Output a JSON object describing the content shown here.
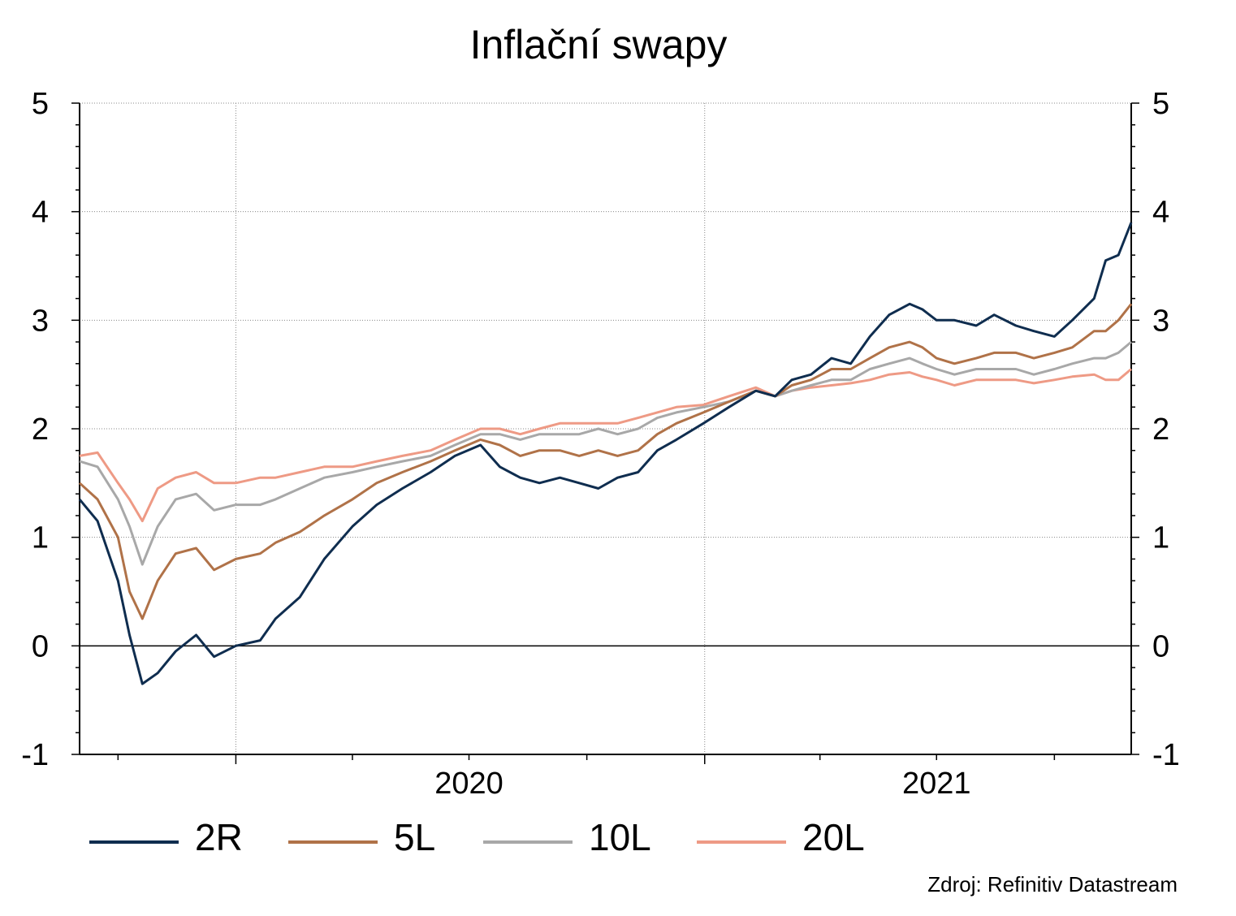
{
  "chart_data": {
    "type": "line",
    "title": "Inflační swapy",
    "source": "Zdroj: Refinitiv Datastream",
    "x_range": [
      "2019-09-01",
      "2021-11-30"
    ],
    "x_year_labels": [
      {
        "label": "2020",
        "date": "2020-07-01"
      },
      {
        "label": "2021",
        "date": "2021-07-01"
      }
    ],
    "ylim": [
      -1,
      5
    ],
    "yticks": [
      -1,
      0,
      1,
      2,
      3,
      4,
      5
    ],
    "ytick_labels": [
      "-1",
      "0",
      "1",
      "2",
      "3",
      "4",
      "5"
    ],
    "grid": true,
    "legend_position": "bottom",
    "series": [
      {
        "name": "2R",
        "color": "#0f2d4f",
        "points": [
          [
            "2019-09-01",
            1.35
          ],
          [
            "2019-09-15",
            1.15
          ],
          [
            "2019-10-01",
            0.6
          ],
          [
            "2019-10-10",
            0.1
          ],
          [
            "2019-10-20",
            -0.35
          ],
          [
            "2019-11-01",
            -0.25
          ],
          [
            "2019-11-15",
            -0.05
          ],
          [
            "2019-12-01",
            0.1
          ],
          [
            "2019-12-15",
            -0.1
          ],
          [
            "2020-01-01",
            0.0
          ],
          [
            "2020-01-20",
            0.05
          ],
          [
            "2020-02-01",
            0.25
          ],
          [
            "2020-02-20",
            0.45
          ],
          [
            "2020-03-10",
            0.8
          ],
          [
            "2020-04-01",
            1.1
          ],
          [
            "2020-04-20",
            1.3
          ],
          [
            "2020-05-10",
            1.45
          ],
          [
            "2020-06-01",
            1.6
          ],
          [
            "2020-06-20",
            1.75
          ],
          [
            "2020-07-10",
            1.85
          ],
          [
            "2020-07-25",
            1.65
          ],
          [
            "2020-08-10",
            1.55
          ],
          [
            "2020-08-25",
            1.5
          ],
          [
            "2020-09-10",
            1.55
          ],
          [
            "2020-09-25",
            1.5
          ],
          [
            "2020-10-10",
            1.45
          ],
          [
            "2020-10-25",
            1.55
          ],
          [
            "2020-11-10",
            1.6
          ],
          [
            "2020-11-25",
            1.8
          ],
          [
            "2020-12-10",
            1.9
          ],
          [
            "2020-12-31",
            2.05
          ],
          [
            "2021-01-20",
            2.2
          ],
          [
            "2021-02-10",
            2.35
          ],
          [
            "2021-02-25",
            2.3
          ],
          [
            "2021-03-10",
            2.45
          ],
          [
            "2021-03-25",
            2.5
          ],
          [
            "2021-04-10",
            2.65
          ],
          [
            "2021-04-25",
            2.6
          ],
          [
            "2021-05-10",
            2.85
          ],
          [
            "2021-05-25",
            3.05
          ],
          [
            "2021-06-10",
            3.15
          ],
          [
            "2021-06-20",
            3.1
          ],
          [
            "2021-07-01",
            3.0
          ],
          [
            "2021-07-15",
            3.0
          ],
          [
            "2021-08-01",
            2.95
          ],
          [
            "2021-08-15",
            3.05
          ],
          [
            "2021-09-01",
            2.95
          ],
          [
            "2021-09-15",
            2.9
          ],
          [
            "2021-10-01",
            2.85
          ],
          [
            "2021-10-15",
            3.0
          ],
          [
            "2021-11-01",
            3.2
          ],
          [
            "2021-11-10",
            3.55
          ],
          [
            "2021-11-20",
            3.6
          ],
          [
            "2021-11-30",
            3.9
          ]
        ]
      },
      {
        "name": "5L",
        "color": "#b07248",
        "points": [
          [
            "2019-09-01",
            1.5
          ],
          [
            "2019-09-15",
            1.35
          ],
          [
            "2019-10-01",
            1.0
          ],
          [
            "2019-10-10",
            0.5
          ],
          [
            "2019-10-20",
            0.25
          ],
          [
            "2019-11-01",
            0.6
          ],
          [
            "2019-11-15",
            0.85
          ],
          [
            "2019-12-01",
            0.9
          ],
          [
            "2019-12-15",
            0.7
          ],
          [
            "2020-01-01",
            0.8
          ],
          [
            "2020-01-20",
            0.85
          ],
          [
            "2020-02-01",
            0.95
          ],
          [
            "2020-02-20",
            1.05
          ],
          [
            "2020-03-10",
            1.2
          ],
          [
            "2020-04-01",
            1.35
          ],
          [
            "2020-04-20",
            1.5
          ],
          [
            "2020-05-10",
            1.6
          ],
          [
            "2020-06-01",
            1.7
          ],
          [
            "2020-06-20",
            1.8
          ],
          [
            "2020-07-10",
            1.9
          ],
          [
            "2020-07-25",
            1.85
          ],
          [
            "2020-08-10",
            1.75
          ],
          [
            "2020-08-25",
            1.8
          ],
          [
            "2020-09-10",
            1.8
          ],
          [
            "2020-09-25",
            1.75
          ],
          [
            "2020-10-10",
            1.8
          ],
          [
            "2020-10-25",
            1.75
          ],
          [
            "2020-11-10",
            1.8
          ],
          [
            "2020-11-25",
            1.95
          ],
          [
            "2020-12-10",
            2.05
          ],
          [
            "2020-12-31",
            2.15
          ],
          [
            "2021-01-20",
            2.25
          ],
          [
            "2021-02-10",
            2.35
          ],
          [
            "2021-02-25",
            2.3
          ],
          [
            "2021-03-10",
            2.4
          ],
          [
            "2021-03-25",
            2.45
          ],
          [
            "2021-04-10",
            2.55
          ],
          [
            "2021-04-25",
            2.55
          ],
          [
            "2021-05-10",
            2.65
          ],
          [
            "2021-05-25",
            2.75
          ],
          [
            "2021-06-10",
            2.8
          ],
          [
            "2021-06-20",
            2.75
          ],
          [
            "2021-07-01",
            2.65
          ],
          [
            "2021-07-15",
            2.6
          ],
          [
            "2021-08-01",
            2.65
          ],
          [
            "2021-08-15",
            2.7
          ],
          [
            "2021-09-01",
            2.7
          ],
          [
            "2021-09-15",
            2.65
          ],
          [
            "2021-10-01",
            2.7
          ],
          [
            "2021-10-15",
            2.75
          ],
          [
            "2021-11-01",
            2.9
          ],
          [
            "2021-11-10",
            2.9
          ],
          [
            "2021-11-20",
            3.0
          ],
          [
            "2021-11-30",
            3.15
          ]
        ]
      },
      {
        "name": "10L",
        "color": "#a8a8a8",
        "points": [
          [
            "2019-09-01",
            1.7
          ],
          [
            "2019-09-15",
            1.65
          ],
          [
            "2019-10-01",
            1.35
          ],
          [
            "2019-10-10",
            1.1
          ],
          [
            "2019-10-20",
            0.75
          ],
          [
            "2019-11-01",
            1.1
          ],
          [
            "2019-11-15",
            1.35
          ],
          [
            "2019-12-01",
            1.4
          ],
          [
            "2019-12-15",
            1.25
          ],
          [
            "2020-01-01",
            1.3
          ],
          [
            "2020-01-20",
            1.3
          ],
          [
            "2020-02-01",
            1.35
          ],
          [
            "2020-02-20",
            1.45
          ],
          [
            "2020-03-10",
            1.55
          ],
          [
            "2020-04-01",
            1.6
          ],
          [
            "2020-04-20",
            1.65
          ],
          [
            "2020-05-10",
            1.7
          ],
          [
            "2020-06-01",
            1.75
          ],
          [
            "2020-06-20",
            1.85
          ],
          [
            "2020-07-10",
            1.95
          ],
          [
            "2020-07-25",
            1.95
          ],
          [
            "2020-08-10",
            1.9
          ],
          [
            "2020-08-25",
            1.95
          ],
          [
            "2020-09-10",
            1.95
          ],
          [
            "2020-09-25",
            1.95
          ],
          [
            "2020-10-10",
            2.0
          ],
          [
            "2020-10-25",
            1.95
          ],
          [
            "2020-11-10",
            2.0
          ],
          [
            "2020-11-25",
            2.1
          ],
          [
            "2020-12-10",
            2.15
          ],
          [
            "2020-12-31",
            2.2
          ],
          [
            "2021-01-20",
            2.25
          ],
          [
            "2021-02-10",
            2.35
          ],
          [
            "2021-02-25",
            2.3
          ],
          [
            "2021-03-10",
            2.35
          ],
          [
            "2021-03-25",
            2.4
          ],
          [
            "2021-04-10",
            2.45
          ],
          [
            "2021-04-25",
            2.45
          ],
          [
            "2021-05-10",
            2.55
          ],
          [
            "2021-05-25",
            2.6
          ],
          [
            "2021-06-10",
            2.65
          ],
          [
            "2021-06-20",
            2.6
          ],
          [
            "2021-07-01",
            2.55
          ],
          [
            "2021-07-15",
            2.5
          ],
          [
            "2021-08-01",
            2.55
          ],
          [
            "2021-08-15",
            2.55
          ],
          [
            "2021-09-01",
            2.55
          ],
          [
            "2021-09-15",
            2.5
          ],
          [
            "2021-10-01",
            2.55
          ],
          [
            "2021-10-15",
            2.6
          ],
          [
            "2021-11-01",
            2.65
          ],
          [
            "2021-11-10",
            2.65
          ],
          [
            "2021-11-20",
            2.7
          ],
          [
            "2021-11-30",
            2.8
          ]
        ]
      },
      {
        "name": "20L",
        "color": "#ee9a85",
        "points": [
          [
            "2019-09-01",
            1.75
          ],
          [
            "2019-09-15",
            1.78
          ],
          [
            "2019-10-01",
            1.5
          ],
          [
            "2019-10-10",
            1.35
          ],
          [
            "2019-10-20",
            1.15
          ],
          [
            "2019-11-01",
            1.45
          ],
          [
            "2019-11-15",
            1.55
          ],
          [
            "2019-12-01",
            1.6
          ],
          [
            "2019-12-15",
            1.5
          ],
          [
            "2020-01-01",
            1.5
          ],
          [
            "2020-01-20",
            1.55
          ],
          [
            "2020-02-01",
            1.55
          ],
          [
            "2020-02-20",
            1.6
          ],
          [
            "2020-03-10",
            1.65
          ],
          [
            "2020-04-01",
            1.65
          ],
          [
            "2020-04-20",
            1.7
          ],
          [
            "2020-05-10",
            1.75
          ],
          [
            "2020-06-01",
            1.8
          ],
          [
            "2020-06-20",
            1.9
          ],
          [
            "2020-07-10",
            2.0
          ],
          [
            "2020-07-25",
            2.0
          ],
          [
            "2020-08-10",
            1.95
          ],
          [
            "2020-08-25",
            2.0
          ],
          [
            "2020-09-10",
            2.05
          ],
          [
            "2020-09-25",
            2.05
          ],
          [
            "2020-10-10",
            2.05
          ],
          [
            "2020-10-25",
            2.05
          ],
          [
            "2020-11-10",
            2.1
          ],
          [
            "2020-11-25",
            2.15
          ],
          [
            "2020-12-10",
            2.2
          ],
          [
            "2020-12-31",
            2.22
          ],
          [
            "2021-01-20",
            2.3
          ],
          [
            "2021-02-10",
            2.38
          ],
          [
            "2021-02-25",
            2.3
          ],
          [
            "2021-03-10",
            2.35
          ],
          [
            "2021-03-25",
            2.38
          ],
          [
            "2021-04-10",
            2.4
          ],
          [
            "2021-04-25",
            2.42
          ],
          [
            "2021-05-10",
            2.45
          ],
          [
            "2021-05-25",
            2.5
          ],
          [
            "2021-06-10",
            2.52
          ],
          [
            "2021-06-20",
            2.48
          ],
          [
            "2021-07-01",
            2.45
          ],
          [
            "2021-07-15",
            2.4
          ],
          [
            "2021-08-01",
            2.45
          ],
          [
            "2021-08-15",
            2.45
          ],
          [
            "2021-09-01",
            2.45
          ],
          [
            "2021-09-15",
            2.42
          ],
          [
            "2021-10-01",
            2.45
          ],
          [
            "2021-10-15",
            2.48
          ],
          [
            "2021-11-01",
            2.5
          ],
          [
            "2021-11-10",
            2.45
          ],
          [
            "2021-11-20",
            2.45
          ],
          [
            "2021-11-30",
            2.55
          ]
        ]
      }
    ]
  }
}
